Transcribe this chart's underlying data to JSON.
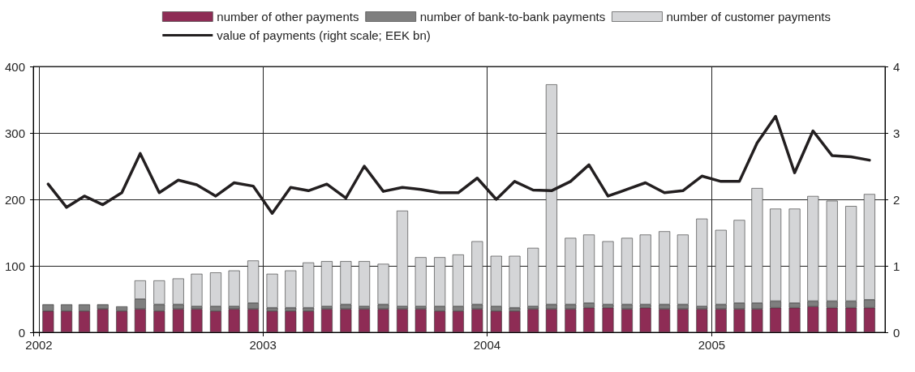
{
  "chart_data": {
    "type": "bar",
    "stacked": true,
    "x": [
      "2002-01-16",
      "2002-02-15",
      "2002-03-16",
      "2002-04-15",
      "2002-05-16",
      "2002-06-15",
      "2002-07-16",
      "2002-08-16",
      "2002-09-15",
      "2002-10-16",
      "2002-11-15",
      "2002-12-16",
      "2003-01-16",
      "2003-02-15",
      "2003-03-16",
      "2003-04-15",
      "2003-05-16",
      "2003-06-15",
      "2003-07-16",
      "2003-08-16",
      "2003-09-15",
      "2003-10-16",
      "2003-11-15",
      "2003-12-16",
      "2004-01-16",
      "2004-02-15",
      "2004-03-16",
      "2004-04-15",
      "2004-05-16",
      "2004-06-15",
      "2004-07-16",
      "2004-08-16",
      "2004-09-15",
      "2004-10-16",
      "2004-11-15",
      "2004-12-16",
      "2005-01-16",
      "2005-02-15",
      "2005-03-16",
      "2005-04-15",
      "2005-05-16",
      "2005-06-15",
      "2005-07-16",
      "2005-08-16",
      "2005-09-15"
    ],
    "series": [
      {
        "name": "number of other payments",
        "color": "#8e2c55",
        "values": [
          32,
          32,
          32,
          35,
          32,
          35,
          32,
          35,
          35,
          32,
          35,
          35,
          32,
          32,
          32,
          35,
          35,
          35,
          35,
          35,
          35,
          32,
          32,
          35,
          32,
          32,
          35,
          35,
          35,
          37,
          37,
          35,
          37,
          35,
          35,
          35,
          35,
          35,
          35,
          37,
          37,
          39,
          37,
          37,
          37
        ]
      },
      {
        "name": "number of bank-to-bank payments",
        "color": "#7f7f7f",
        "values": [
          10,
          10,
          10,
          7,
          7,
          15,
          10,
          7,
          4,
          7,
          4,
          9,
          5,
          5,
          5,
          4,
          7,
          4,
          7,
          4,
          4,
          7,
          7,
          7,
          7,
          5,
          4,
          7,
          7,
          7,
          5,
          7,
          5,
          7,
          7,
          4,
          7,
          9,
          9,
          10,
          7,
          8,
          10,
          10,
          12
        ]
      },
      {
        "name": "number of customer payments",
        "color": "#d4d5d7",
        "values": [
          0,
          0,
          0,
          0,
          0,
          28,
          36,
          39,
          49,
          51,
          54,
          64,
          51,
          56,
          68,
          68,
          65,
          68,
          61,
          144,
          74,
          74,
          78,
          95,
          76,
          78,
          88,
          331,
          100,
          103,
          95,
          100,
          105,
          110,
          105,
          132,
          112,
          125,
          173,
          139,
          142,
          158,
          151,
          143,
          159
        ]
      },
      {
        "name": "value of payments (right scale; EEK bn)",
        "type": "line",
        "axis": "y2",
        "color": "#231f20",
        "values": [
          2.23,
          1.88,
          2.05,
          1.92,
          2.1,
          2.69,
          2.1,
          2.29,
          2.22,
          2.05,
          2.25,
          2.2,
          1.79,
          2.18,
          2.13,
          2.23,
          2.02,
          2.5,
          2.12,
          2.18,
          2.15,
          2.1,
          2.1,
          2.32,
          2.0,
          2.27,
          2.14,
          2.13,
          2.27,
          2.52,
          2.05,
          2.15,
          2.25,
          2.1,
          2.13,
          2.35,
          2.27,
          2.27,
          2.85,
          3.25,
          2.4,
          3.03,
          2.66,
          2.64,
          2.59
        ]
      }
    ],
    "xlim": [
      "2002-01",
      "2005-10"
    ],
    "xticks": [
      "2002",
      "2003",
      "2004",
      "2005"
    ],
    "ylim": [
      0,
      400
    ],
    "yticks": [
      0,
      100,
      200,
      300,
      400
    ],
    "y2lim": [
      0,
      4
    ],
    "y2ticks": [
      0,
      1,
      2,
      3,
      4
    ],
    "grid": true,
    "legend": "top",
    "marker": "none",
    "line_style": "solid"
  }
}
